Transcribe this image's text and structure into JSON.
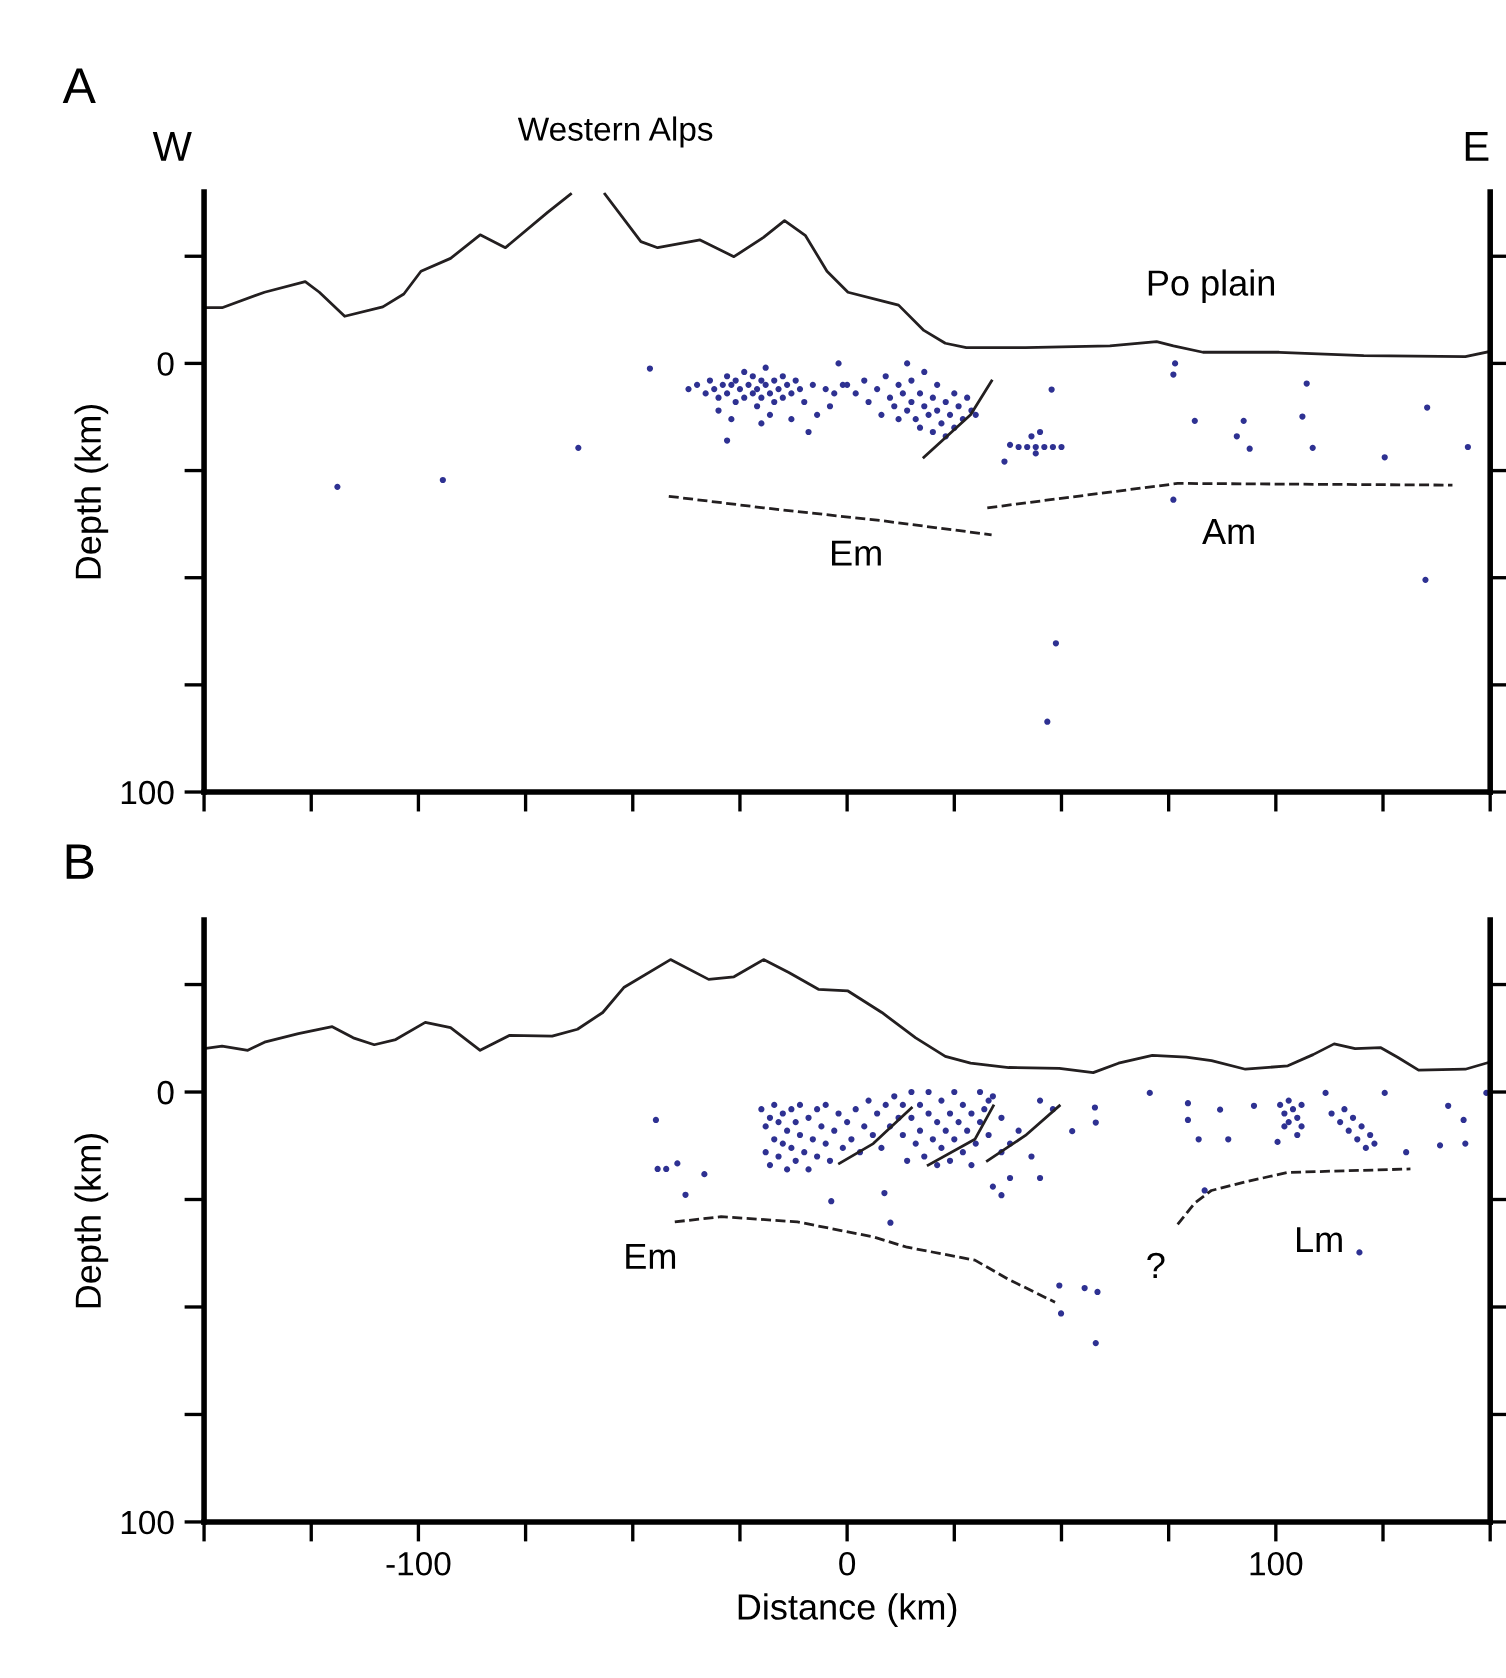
{
  "chart_data": [
    {
      "type": "scatter",
      "ylabel": "Depth (km)",
      "xlim": [
        -150,
        150
      ],
      "ylim": [
        100,
        -40
      ],
      "tick_labels": "y",
      "xticks": [
        {
          "value": -150,
          "label": null
        },
        {
          "value": -125,
          "label": null
        },
        {
          "value": -100,
          "label": null
        },
        {
          "value": -75,
          "label": null
        },
        {
          "value": -50,
          "label": null
        },
        {
          "value": -25,
          "label": null
        },
        {
          "value": 0,
          "label": null
        },
        {
          "value": 25,
          "label": null
        },
        {
          "value": 50,
          "label": null
        },
        {
          "value": 75,
          "label": null
        },
        {
          "value": 100,
          "label": null
        },
        {
          "value": 125,
          "label": null
        },
        {
          "value": 150,
          "label": null
        }
      ],
      "yticks": [
        {
          "value": -25,
          "label": null
        },
        0,
        {
          "value": 25,
          "label": null
        },
        {
          "value": 50,
          "label": null
        },
        {
          "value": 75,
          "label": null
        },
        100
      ],
      "annotations": [
        "A",
        "W",
        "E",
        "Western Alps",
        "Po plain",
        "Em",
        "Am"
      ],
      "series": [
        {
          "type": "line",
          "color": "#231f20",
          "line_style": "solid",
          "x": [
            -150,
            -145.8,
            -135.9,
            -126.4,
            -123.1,
            -117.2,
            -108.3,
            -103.4,
            -99.4,
            -92.5,
            -85.6,
            -79.7,
            -69.8,
            -64.5,
            -60,
            -56.5,
            -48.1,
            -44.2,
            -34.3,
            -26.4,
            -19.5,
            -14.6,
            -9.7,
            -4.7,
            0.2,
            8.1,
            12,
            17.9,
            22.9,
            27.8,
            41.6,
            61.3,
            72.2,
            76.1,
            83,
            100.8,
            120.5,
            144.2,
            150
          ],
          "values": [
            -13,
            -13,
            -16.6,
            -19.1,
            -16.6,
            -11,
            -13.2,
            -16.2,
            -21.5,
            -24.5,
            -30,
            -27,
            -35.3,
            -39.5,
            null,
            -39.5,
            -28.4,
            -27,
            -28.8,
            -24.9,
            -29.4,
            -33.3,
            -29.8,
            -21.5,
            -16.6,
            -14.6,
            -13.6,
            -7.7,
            -4.7,
            -3.7,
            -3.7,
            -4.1,
            -5.1,
            -4.1,
            -2.6,
            -2.6,
            -1.8,
            -1.6,
            -2.8
          ]
        },
        {
          "type": "line",
          "color": "#231f20",
          "line_style": "dashed",
          "x": [
            -41.6,
            -19.5,
            8.1,
            33.7
          ],
          "values": [
            31,
            33.7,
            36.7,
            40
          ]
        },
        {
          "type": "line",
          "color": "#231f20",
          "line_style": "dashed",
          "x": [
            32.7,
            77.1,
            141.2
          ],
          "values": [
            33.7,
            28,
            28.4
          ]
        },
        {
          "type": "line",
          "color": "#231f20",
          "line_style": "solid",
          "x": [
            17.9,
            28.8,
            33.7
          ],
          "values": [
            21.9,
            12,
            4.1
          ]
        },
        {
          "color": "#2e3192",
          "marker": "circle",
          "x": [
            -118.9,
            -94.3,
            -62.7,
            -46,
            47.7,
            36.7,
            76.5,
            76.1,
            81.1,
            76.1,
            92.5,
            90.9,
            93.9,
            107.2,
            106.2,
            108.6,
            125.4,
            135.3,
            144.8,
            134.9,
            48.7,
            46.7,
            -37,
            -35,
            -33,
            -32,
            -31,
            -30,
            -29,
            -28,
            -28,
            -27,
            -26,
            -26,
            -25,
            -24,
            -24,
            -23,
            -22,
            -22,
            -21,
            -21,
            -20,
            -20,
            -19,
            -19,
            -18,
            -18,
            -17,
            -17,
            -16,
            -15,
            -15,
            -14,
            -13,
            -12,
            -11,
            -10,
            -8,
            -7,
            -5,
            -3,
            -1,
            -2,
            -28,
            -27,
            -20,
            -13,
            -9,
            -30,
            0,
            2,
            4,
            -4,
            5,
            7,
            8,
            9,
            10,
            11,
            12,
            12,
            13,
            14,
            15,
            15,
            16,
            17,
            17,
            18,
            18,
            19,
            20,
            20,
            21,
            21,
            22,
            23,
            23,
            24,
            25,
            25,
            26,
            27,
            28,
            29,
            30,
            14,
            38,
            40,
            42,
            44,
            46,
            48,
            50,
            43,
            45,
            44
          ],
          "values": [
            28.8,
            27.2,
            19.7,
            1.2,
            6.1,
            22.9,
            0,
            2.6,
            13.4,
            31.8,
            13.4,
            17,
            19.9,
            4.7,
            12.4,
            19.7,
            21.9,
            10.3,
            19.5,
            50.5,
            65.3,
            83.6,
            6,
            5,
            7,
            4,
            6,
            8,
            5,
            3,
            7,
            5,
            9,
            4,
            6,
            2,
            8,
            5,
            7,
            3,
            6,
            10,
            4,
            8,
            5,
            1,
            7,
            12,
            4,
            9,
            6,
            3,
            8,
            5,
            7,
            4,
            6,
            9,
            5,
            12,
            6,
            7,
            5,
            0,
            18,
            13,
            14,
            13,
            16,
            11,
            5,
            7,
            4,
            10,
            9,
            6,
            12,
            3,
            8,
            10,
            5,
            13,
            7,
            11,
            9,
            4,
            13,
            7,
            15,
            10,
            2,
            12,
            8,
            16,
            11,
            5,
            14,
            9,
            17,
            12,
            7,
            15,
            10,
            13,
            8,
            11,
            12,
            0,
            19,
            19.5,
            19.5,
            19.5,
            19.5,
            19.5,
            19.5,
            17,
            16,
            21
          ]
        }
      ]
    },
    {
      "type": "scatter",
      "xlabel": "Distance (km)",
      "ylabel": "Depth (km)",
      "xlim": [
        -150,
        150
      ],
      "ylim": [
        100,
        -40
      ],
      "xticks": [
        {
          "value": -150,
          "label": null
        },
        {
          "value": -125,
          "label": null
        },
        {
          "value": -100,
          "label": "-100"
        },
        {
          "value": -75,
          "label": null
        },
        {
          "value": -50,
          "label": null
        },
        {
          "value": -25,
          "label": null
        },
        0,
        {
          "value": 25,
          "label": null
        },
        {
          "value": 50,
          "label": null
        },
        {
          "value": 75,
          "label": null
        },
        100,
        {
          "value": 125,
          "label": null
        },
        {
          "value": 150,
          "label": null
        }
      ],
      "yticks": [
        {
          "value": -25,
          "label": null
        },
        0,
        {
          "value": 25,
          "label": null
        },
        {
          "value": 50,
          "label": null
        },
        {
          "value": 75,
          "label": null
        },
        100
      ],
      "annotations": [
        "B",
        "Em",
        "?",
        "Lm"
      ],
      "series": [
        {
          "type": "line",
          "color": "#231f20",
          "line_style": "solid",
          "x": [
            -150,
            -145.8,
            -139.8,
            -135.9,
            -128,
            -120.1,
            -115.2,
            -110.3,
            -105.3,
            -98.4,
            -92.5,
            -85.6,
            -78.7,
            -68.8,
            -62.9,
            -57,
            -52.1,
            -41.2,
            -32.3,
            -26.4,
            -19.5,
            -13.6,
            -6.7,
            0.2,
            8.1,
            16,
            22.9,
            28.8,
            37.7,
            49.5,
            57.4,
            63.3,
            71.2,
            79.1,
            85,
            92.9,
            102.8,
            108.7,
            113.6,
            118.5,
            124.5,
            128.4,
            133.3,
            144.2,
            149.7
          ],
          "values": [
            -10.1,
            -10.7,
            -9.7,
            -11.6,
            -13.6,
            -15.2,
            -12.6,
            -11,
            -12.2,
            -16.2,
            -15,
            -9.7,
            -13.2,
            -13,
            -14.6,
            -18.5,
            -24.3,
            -30.8,
            -26.2,
            -26.8,
            -30.8,
            -27.8,
            -23.9,
            -23.5,
            -18.5,
            -12.6,
            -8.3,
            -6.7,
            -5.7,
            -5.5,
            -4.5,
            -6.7,
            -8.5,
            -8.1,
            -7.3,
            -5.3,
            -6.1,
            -8.7,
            -11.2,
            -10.1,
            -10.3,
            -8.1,
            -5.1,
            -5.3,
            -6.9
          ]
        },
        {
          "type": "line",
          "color": "#231f20",
          "line_style": "dashed",
          "x": [
            -40.2,
            -29.4,
            -11.6,
            6.1,
            14,
            29.8,
            37.7,
            48.5
          ],
          "values": [
            30.2,
            29,
            30.2,
            33.7,
            36.1,
            39.1,
            43.6,
            48.9
          ]
        },
        {
          "type": "line",
          "color": "#231f20",
          "line_style": "dashed",
          "x": [
            77.1,
            81.1,
            85,
            92.9,
            102.8,
            131.4
          ],
          "values": [
            30.8,
            25.8,
            22.9,
            20.9,
            18.7,
            17.9
          ]
        },
        {
          "type": "line",
          "color": "#231f20",
          "line_style": "solid",
          "x": [
            -1.8,
            6.1,
            15
          ],
          "values": [
            16.6,
            12,
            3.7
          ]
        },
        {
          "type": "line",
          "color": "#231f20",
          "line_style": "solid",
          "x": [
            18.9,
            29.8,
            34.1
          ],
          "values": [
            17,
            11,
            3.2
          ]
        },
        {
          "type": "line",
          "color": "#231f20",
          "line_style": "solid",
          "x": [
            32.7,
            41.6,
            49.5
          ],
          "values": [
            16,
            10.1,
            3.2
          ]
        },
        {
          "color": "#2e3192",
          "marker": "circle",
          "x": [
            -44.6,
            -44.2,
            -42.2,
            -39.6,
            -37.7,
            -33.3,
            -3.7,
            8.7,
            10.1,
            49.5,
            49.9,
            55.4,
            58.4,
            58,
            52.5,
            57.8,
            58,
            70.6,
            79.5,
            79.5,
            82,
            87,
            88.9,
            94.9,
            100.4,
            83.4,
            119.5,
            140.2,
            143.8,
            138.3,
            144.2,
            149.1,
            130.4,
            125.4,
            111.6,
            101,
            102,
            103,
            104,
            105,
            106,
            103,
            105,
            102,
            106,
            113,
            115,
            117,
            118,
            119,
            120,
            122,
            123,
            116,
            121,
            -20,
            -19,
            -19,
            -18,
            -18,
            -17,
            -17,
            -16,
            -16,
            -15,
            -15,
            -14,
            -14,
            -13,
            -13,
            -12,
            -12,
            -11,
            -11,
            -10,
            -9,
            -9,
            -8,
            -7,
            -7,
            -6,
            -5,
            -5,
            -4,
            -3,
            -2,
            -1,
            0,
            1,
            2,
            3,
            4,
            5,
            6,
            7,
            8,
            9,
            10,
            11,
            12,
            13,
            13,
            14,
            15,
            15,
            16,
            17,
            17,
            18,
            19,
            19,
            20,
            21,
            21,
            22,
            22,
            23,
            24,
            24,
            25,
            25,
            26,
            27,
            27,
            28,
            29,
            29,
            30,
            31,
            31,
            32,
            33,
            33,
            34,
            36,
            36,
            38,
            38,
            40,
            43,
            45,
            45,
            48,
            36,
            34
          ],
          "values": [
            6.5,
            17.9,
            17.9,
            16.6,
            23.9,
            19.1,
            25.4,
            23.5,
            30.4,
            45,
            51.5,
            45.6,
            46.5,
            58.4,
            9.1,
            3.6,
            7.1,
            0.2,
            2.6,
            6.5,
            11,
            4.1,
            11,
            3.2,
            11.6,
            22.9,
            37.3,
            3.2,
            6.5,
            12.4,
            12,
            0.2,
            14,
            0.2,
            0.2,
            3,
            5,
            7,
            4,
            6,
            8,
            2,
            10,
            8,
            3,
            5,
            7,
            9,
            6,
            11,
            8,
            10,
            12,
            4,
            13,
            4,
            8,
            14,
            6,
            17,
            3,
            11,
            7,
            15,
            5,
            12,
            9,
            18,
            4,
            13,
            7,
            16,
            10,
            3,
            14,
            6,
            18,
            11,
            4,
            15,
            8,
            12,
            3,
            16,
            9,
            5,
            13,
            7,
            11,
            4,
            14,
            8,
            2,
            10,
            5,
            13,
            3,
            8,
            1,
            6,
            3,
            10,
            16,
            6,
            0,
            12,
            3,
            9,
            15,
            5,
            0,
            11,
            7,
            17,
            2,
            13,
            9,
            5,
            16,
            0,
            11,
            7,
            14,
            3,
            9,
            5,
            17,
            12,
            0,
            7,
            4,
            2,
            10,
            1,
            6,
            14,
            12,
            20,
            9,
            15,
            2,
            20,
            4,
            24,
            22
          ]
        }
      ]
    }
  ]
}
